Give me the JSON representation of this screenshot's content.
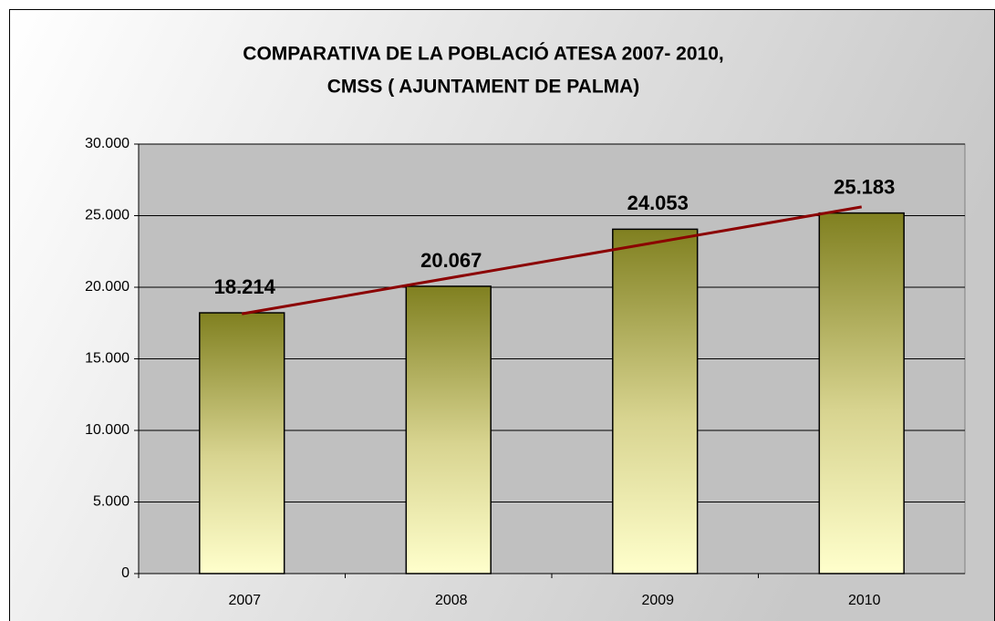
{
  "chart_data": {
    "type": "bar",
    "title": [
      "COMPARATIVA DE LA  POBLACIÓ ATESA 2007- 2010,",
      "CMSS ( AJUNTAMENT DE PALMA)"
    ],
    "categories": [
      "2007",
      "2008",
      "2009",
      "2010"
    ],
    "values": [
      18214,
      20067,
      24053,
      25183
    ],
    "value_labels": [
      "18.214",
      "20.067",
      "24.053",
      "25.183"
    ],
    "color": "#808020",
    "ylim": [
      0,
      30000
    ],
    "yticks": [
      0,
      {
        "value": 5000,
        "label": "5.000"
      },
      {
        "value": 10000,
        "label": "10.000"
      },
      {
        "value": 15000,
        "label": "15.000"
      },
      {
        "value": 20000,
        "label": "20.000"
      },
      {
        "value": 25000,
        "label": "25.000"
      },
      {
        "value": 30000,
        "label": "30.000"
      }
    ],
    "grid": true,
    "trendline": true,
    "trend_color": "#8b0000"
  }
}
